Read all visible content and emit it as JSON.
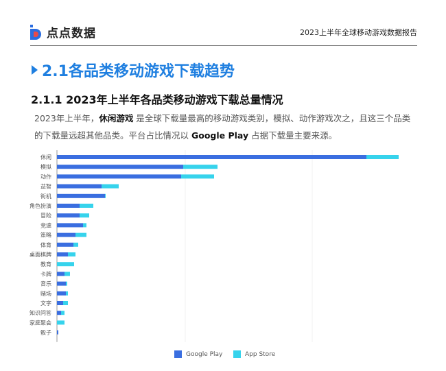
{
  "header": {
    "logo_text": "点点数据",
    "report_title": "2023上半年全球移动游戏数据报告"
  },
  "section": {
    "title": "2.1各品类移动游戏下载趋势",
    "subtitle": "2.1.1  2023年上半年各品类移动游戏下载总量情况"
  },
  "paragraph": {
    "p1": "2023年上半年，",
    "bold": "休闲游戏",
    "p2": " 是全球下载量最高的移动游戏类别，模拟、动作游戏次之，且这三个品类的下载量远超其他品类。平台占比情况以 ",
    "gp": "Google Play",
    "p3": " 占据下载量主要来源。"
  },
  "colors": {
    "google_play": "#3a6ee0",
    "app_store": "#36d3ec",
    "accent": "#1f7fe0"
  },
  "chart_data": {
    "type": "bar",
    "orientation": "horizontal",
    "stacked": true,
    "title": "",
    "xlabel": "",
    "ylabel": "",
    "categories": [
      "休闲",
      "模拟",
      "动作",
      "益智",
      "街机",
      "角色扮演",
      "冒险",
      "竞速",
      "策略",
      "体育",
      "桌面棋牌",
      "教育",
      "卡牌",
      "音乐",
      "赌场",
      "文字",
      "知识问答",
      "家庭聚会",
      "骰子"
    ],
    "series": [
      {
        "name": "Google Play",
        "values": [
          451,
          184,
          181,
          65,
          70,
          33,
          33,
          38,
          27,
          24,
          16,
          0,
          11,
          13,
          13,
          9,
          6,
          0,
          2
        ]
      },
      {
        "name": "App Store",
        "values": [
          47,
          50,
          48,
          25,
          1,
          20,
          14,
          5,
          16,
          7,
          11,
          25,
          8,
          2,
          3,
          7,
          5,
          11,
          0
        ]
      }
    ],
    "xlim": [
      0,
      498
    ],
    "legend": "bottom",
    "grid": true,
    "units": "relative (no axis values shown)"
  }
}
